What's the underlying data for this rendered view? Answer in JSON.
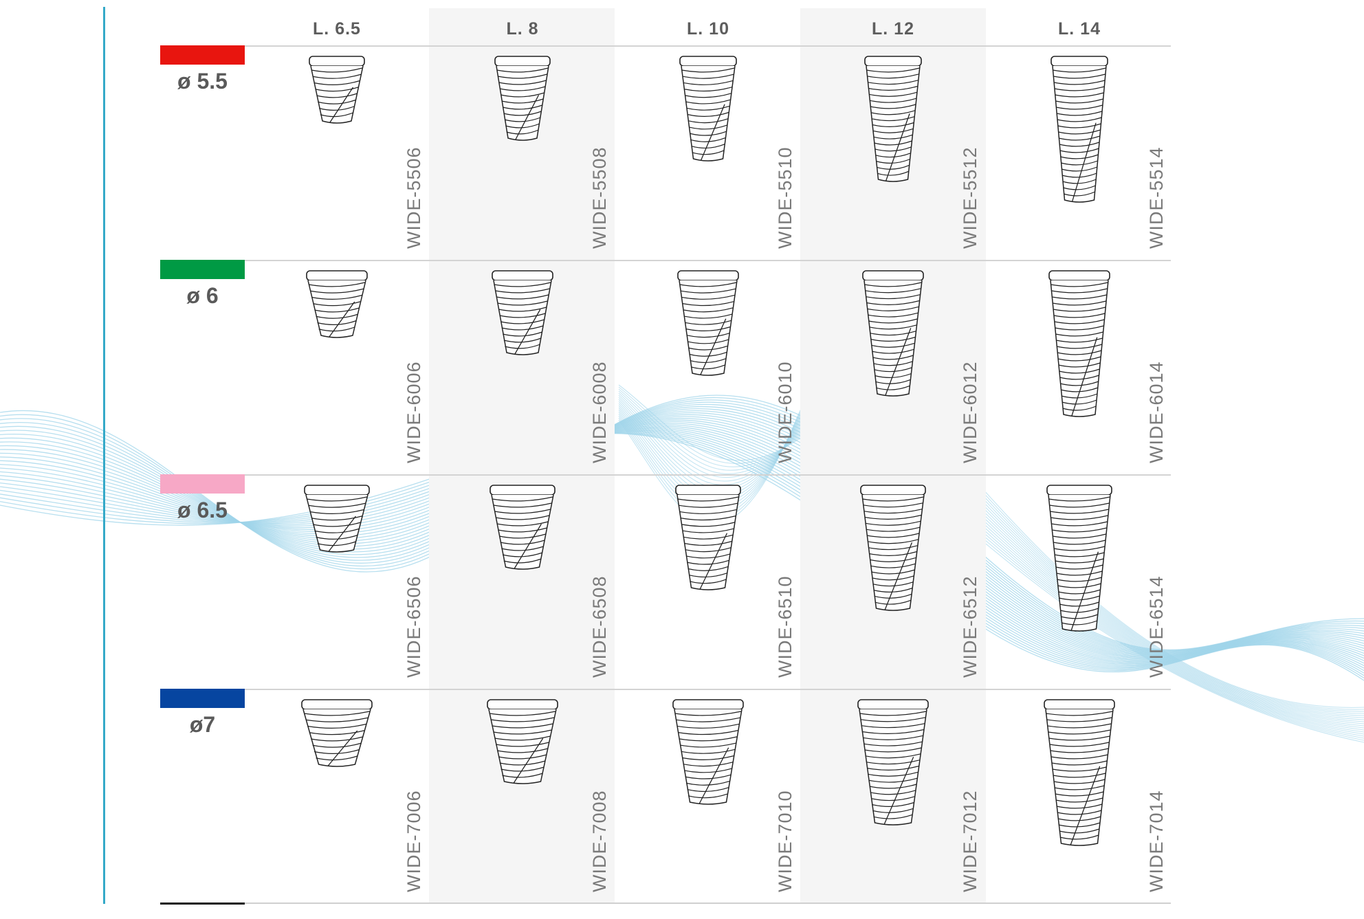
{
  "columns": [
    "L. 6.5",
    "L. 8",
    "L. 10",
    "L. 12",
    "L. 14"
  ],
  "rows": [
    {
      "diameter": "ø 5.5",
      "color": "#e8150f",
      "codes": [
        "WIDE-5506",
        "WIDE-5508",
        "WIDE-5510",
        "WIDE-5512",
        "WIDE-5514"
      ]
    },
    {
      "diameter": "ø 6",
      "color": "#009a44",
      "codes": [
        "WIDE-6006",
        "WIDE-6008",
        "WIDE-6010",
        "WIDE-6012",
        "WIDE-6014"
      ]
    },
    {
      "diameter": "ø 6.5",
      "color": "#f7a8c6",
      "codes": [
        "WIDE-6506",
        "WIDE-6508",
        "WIDE-6510",
        "WIDE-6512",
        "WIDE-6514"
      ]
    },
    {
      "diameter": "ø7",
      "color": "#0645a0",
      "codes": [
        "WIDE-7006",
        "WIDE-7008",
        "WIDE-7010",
        "WIDE-7012",
        "WIDE-7014"
      ]
    }
  ],
  "colors": {
    "accent_line": "#34a9c8",
    "wave": "#9fd4ea",
    "shaded_column": "#f5f5f5"
  },
  "icons": {
    "implant": "dental-implant-drawing"
  }
}
